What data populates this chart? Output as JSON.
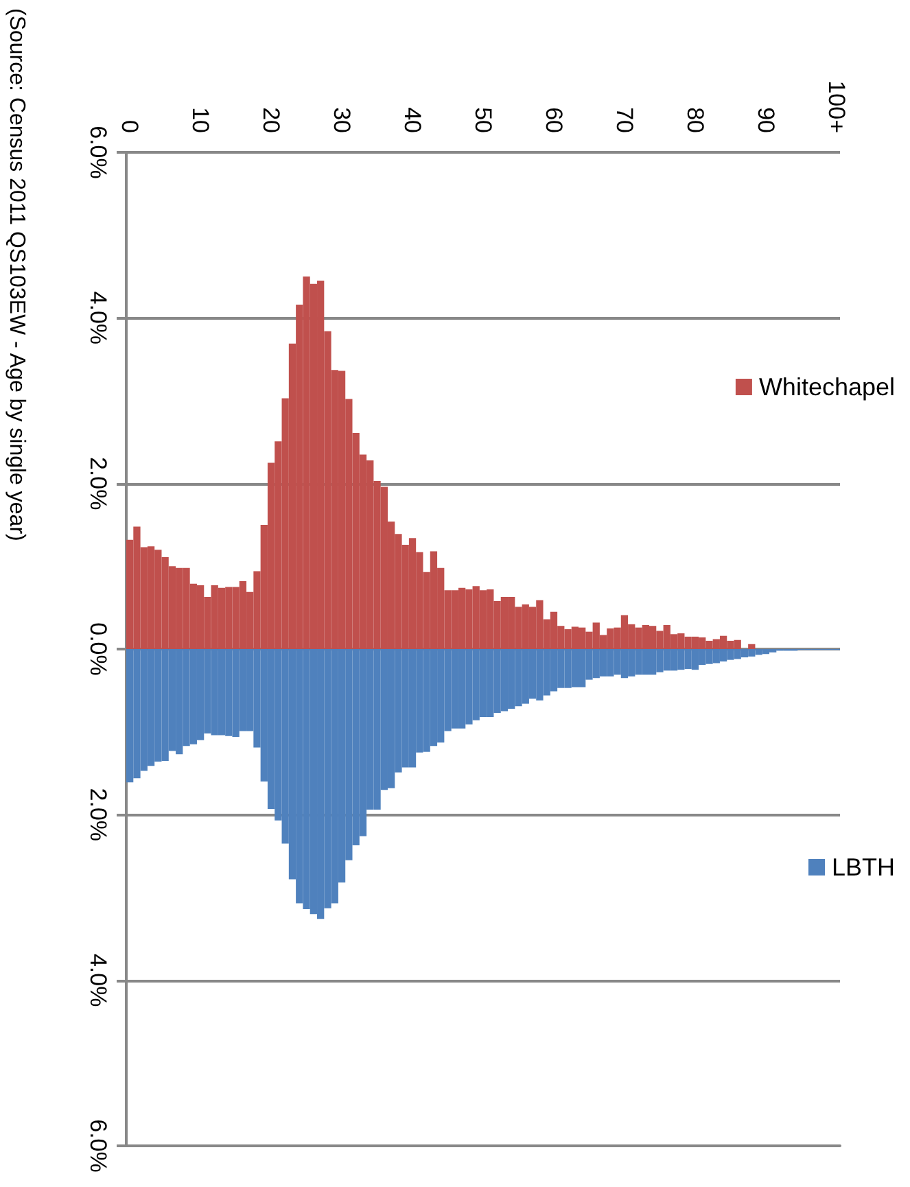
{
  "chart_data": {
    "type": "bar",
    "stacked": true,
    "categories": [
      "0",
      null,
      null,
      null,
      null,
      null,
      null,
      null,
      null,
      null,
      "10",
      null,
      null,
      null,
      null,
      null,
      null,
      null,
      null,
      null,
      "20",
      null,
      null,
      null,
      null,
      null,
      null,
      null,
      null,
      null,
      "30",
      null,
      null,
      null,
      null,
      null,
      null,
      null,
      null,
      null,
      "40",
      null,
      null,
      null,
      null,
      null,
      null,
      null,
      null,
      null,
      "50",
      null,
      null,
      null,
      null,
      null,
      null,
      null,
      null,
      null,
      "60",
      null,
      null,
      null,
      null,
      null,
      null,
      null,
      null,
      null,
      "70",
      null,
      null,
      null,
      null,
      null,
      null,
      null,
      null,
      null,
      "80",
      null,
      null,
      null,
      null,
      null,
      null,
      null,
      null,
      null,
      "90",
      null,
      null,
      null,
      null,
      null,
      null,
      null,
      null,
      null,
      "100+"
    ],
    "series": [
      {
        "name": "Whitechapel",
        "color": "#c0504d",
        "values": [
          1.32,
          1.48,
          1.23,
          1.24,
          1.2,
          1.11,
          1.0,
          0.98,
          0.98,
          0.79,
          0.77,
          0.63,
          0.77,
          0.74,
          0.75,
          0.75,
          0.82,
          0.69,
          0.94,
          1.5,
          2.25,
          2.51,
          3.03,
          3.69,
          4.16,
          4.5,
          4.41,
          4.45,
          3.84,
          3.37,
          3.36,
          3.02,
          2.61,
          2.35,
          2.28,
          2.03,
          1.96,
          1.54,
          1.39,
          1.26,
          1.34,
          1.17,
          0.93,
          1.18,
          0.98,
          0.71,
          0.71,
          0.74,
          0.72,
          0.76,
          0.71,
          0.72,
          0.58,
          0.63,
          0.63,
          0.51,
          0.54,
          0.51,
          0.59,
          0.36,
          0.45,
          0.28,
          0.24,
          0.27,
          0.26,
          0.21,
          0.32,
          0.17,
          0.25,
          0.26,
          0.41,
          0.3,
          0.26,
          0.29,
          0.28,
          0.22,
          0.29,
          0.18,
          0.19,
          0.15,
          0.15,
          0.14,
          0.1,
          0.12,
          0.16,
          0.1,
          0.11,
          null,
          0.06,
          null,
          null,
          null,
          null,
          null,
          null,
          null,
          null,
          null,
          null,
          null,
          null
        ]
      },
      {
        "name": "LBTH",
        "color": "#4f81bd",
        "values": [
          -1.61,
          -1.56,
          -1.47,
          -1.41,
          -1.36,
          -1.35,
          -1.23,
          -1.27,
          -1.17,
          -1.15,
          -1.1,
          -1.02,
          -1.04,
          -1.04,
          -1.05,
          -1.06,
          -0.99,
          -0.99,
          -1.19,
          -1.6,
          -1.93,
          -2.07,
          -2.35,
          -2.78,
          -3.07,
          -3.14,
          -3.2,
          -3.26,
          -3.13,
          -3.07,
          -2.82,
          -2.55,
          -2.37,
          -2.26,
          -1.94,
          -1.94,
          -1.7,
          -1.68,
          -1.49,
          -1.43,
          -1.43,
          -1.25,
          -1.24,
          -1.17,
          -1.13,
          -0.99,
          -0.96,
          -0.96,
          -0.91,
          -0.86,
          -0.82,
          -0.82,
          -0.77,
          -0.75,
          -0.72,
          -0.69,
          -0.66,
          -0.6,
          -0.62,
          -0.56,
          -0.51,
          -0.47,
          -0.47,
          -0.46,
          -0.46,
          -0.37,
          -0.35,
          -0.33,
          -0.33,
          -0.31,
          -0.35,
          -0.33,
          -0.31,
          -0.31,
          -0.31,
          -0.28,
          -0.26,
          -0.26,
          -0.25,
          -0.24,
          -0.25,
          -0.19,
          -0.18,
          -0.17,
          -0.15,
          -0.13,
          -0.12,
          -0.1,
          -0.09,
          -0.07,
          -0.06,
          -0.04,
          -0.02,
          -0.02,
          -0.02,
          -0.01,
          -0.01,
          -0.01,
          -0.01,
          -0.01,
          -0.01
        ]
      }
    ],
    "ylim": [
      -6,
      6
    ],
    "yticks": [
      {
        "value": 6,
        "label": "6.0%"
      },
      {
        "value": 4,
        "label": "4.0%"
      },
      {
        "value": 2,
        "label": "2.0%"
      },
      {
        "value": 0,
        "label": "0.0%"
      },
      {
        "value": -2,
        "label": "2.0%"
      },
      {
        "value": -4,
        "label": "4.0%"
      },
      {
        "value": -6,
        "label": "6.0%"
      }
    ],
    "grid": "y",
    "legend": "right",
    "annotations": [
      "(Source: Census 2011 QS103EW - Age by single year)"
    ]
  }
}
